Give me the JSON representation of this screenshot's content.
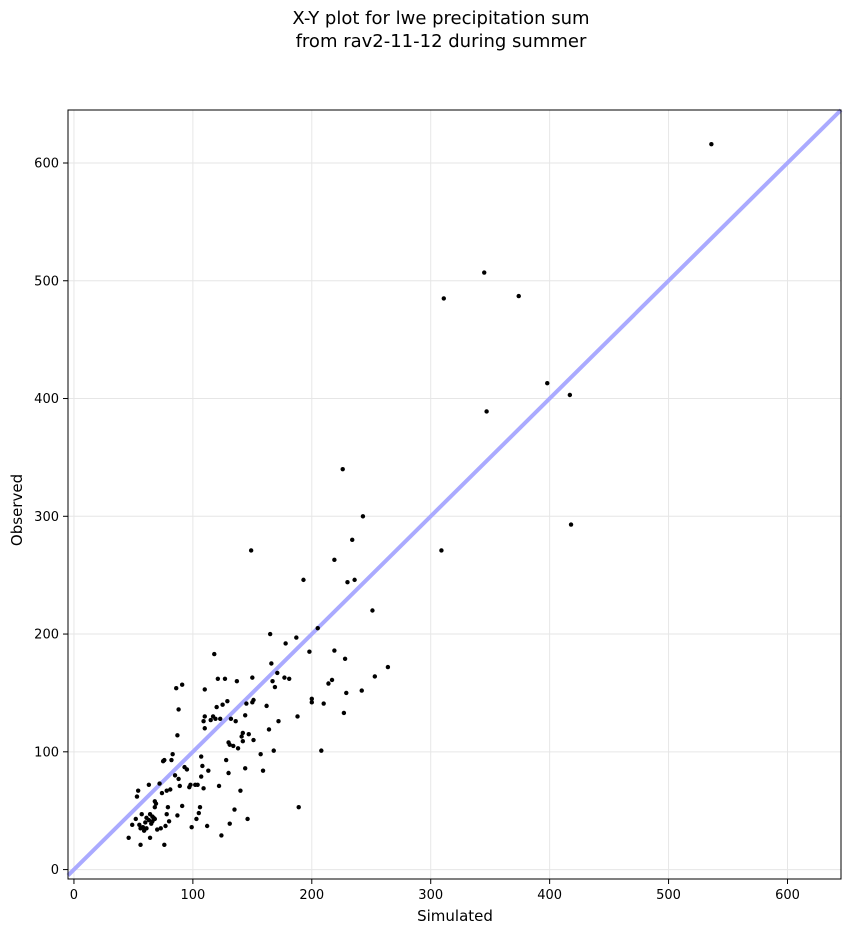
{
  "chart_data": {
    "type": "scatter",
    "title_lines": [
      "X-Y plot for lwe precipitation sum",
      "from rav2-11-12 during summer"
    ],
    "xlabel": "Simulated",
    "ylabel": "Observed",
    "xlim": [
      -5,
      645
    ],
    "ylim": [
      -8,
      645
    ],
    "xticks": [
      0,
      100,
      200,
      300,
      400,
      500,
      600
    ],
    "yticks": [
      0,
      100,
      200,
      300,
      400,
      500,
      600
    ],
    "grid": true,
    "reference_line": {
      "type": "y=x",
      "color": "#aaaaff"
    },
    "point_color": "#000000",
    "points": [
      [
        46,
        27
      ],
      [
        49,
        38
      ],
      [
        52,
        43
      ],
      [
        53,
        62
      ],
      [
        54,
        67
      ],
      [
        55,
        38
      ],
      [
        56,
        35
      ],
      [
        56,
        21
      ],
      [
        57,
        47
      ],
      [
        58,
        36
      ],
      [
        59,
        33
      ],
      [
        60,
        40
      ],
      [
        61,
        44
      ],
      [
        61,
        35
      ],
      [
        63,
        72
      ],
      [
        63,
        42
      ],
      [
        64,
        47
      ],
      [
        64,
        27
      ],
      [
        65,
        39
      ],
      [
        66,
        45
      ],
      [
        66,
        41
      ],
      [
        67,
        44
      ],
      [
        68,
        43
      ],
      [
        68,
        53
      ],
      [
        68,
        58
      ],
      [
        69,
        56
      ],
      [
        70,
        34
      ],
      [
        72,
        73
      ],
      [
        73,
        35
      ],
      [
        74,
        65
      ],
      [
        75,
        92
      ],
      [
        76,
        21
      ],
      [
        76,
        93
      ],
      [
        77,
        37
      ],
      [
        78,
        47
      ],
      [
        78,
        67
      ],
      [
        79,
        53
      ],
      [
        80,
        41
      ],
      [
        81,
        68
      ],
      [
        82,
        93
      ],
      [
        83,
        98
      ],
      [
        85,
        80
      ],
      [
        86,
        154
      ],
      [
        87,
        46
      ],
      [
        87,
        114
      ],
      [
        88,
        136
      ],
      [
        88,
        77
      ],
      [
        89,
        71
      ],
      [
        91,
        157
      ],
      [
        91,
        54
      ],
      [
        93,
        87
      ],
      [
        95,
        85
      ],
      [
        97,
        70
      ],
      [
        98,
        72
      ],
      [
        99,
        36
      ],
      [
        102,
        72
      ],
      [
        103,
        43
      ],
      [
        104,
        72
      ],
      [
        105,
        48
      ],
      [
        106,
        53
      ],
      [
        107,
        96
      ],
      [
        107,
        79
      ],
      [
        108,
        88
      ],
      [
        109,
        69
      ],
      [
        109,
        126
      ],
      [
        110,
        120
      ],
      [
        110,
        130
      ],
      [
        110,
        153
      ],
      [
        112,
        37
      ],
      [
        113,
        84
      ],
      [
        115,
        127
      ],
      [
        117,
        130
      ],
      [
        118,
        183
      ],
      [
        119,
        128
      ],
      [
        120,
        138
      ],
      [
        121,
        162
      ],
      [
        122,
        71
      ],
      [
        123,
        128
      ],
      [
        124,
        29
      ],
      [
        125,
        140
      ],
      [
        127,
        162
      ],
      [
        128,
        93
      ],
      [
        129,
        143
      ],
      [
        130,
        82
      ],
      [
        130,
        108
      ],
      [
        131,
        106
      ],
      [
        131,
        39
      ],
      [
        132,
        128
      ],
      [
        134,
        105
      ],
      [
        135,
        51
      ],
      [
        136,
        126
      ],
      [
        137,
        160
      ],
      [
        138,
        103
      ],
      [
        140,
        67
      ],
      [
        141,
        113
      ],
      [
        142,
        109
      ],
      [
        142,
        116
      ],
      [
        144,
        86
      ],
      [
        144,
        131
      ],
      [
        145,
        141
      ],
      [
        146,
        43
      ],
      [
        147,
        115
      ],
      [
        149,
        271
      ],
      [
        150,
        163
      ],
      [
        150,
        142
      ],
      [
        151,
        144
      ],
      [
        151,
        110
      ],
      [
        157,
        98
      ],
      [
        159,
        84
      ],
      [
        162,
        139
      ],
      [
        164,
        119
      ],
      [
        165,
        200
      ],
      [
        166,
        175
      ],
      [
        167,
        160
      ],
      [
        168,
        101
      ],
      [
        169,
        155
      ],
      [
        171,
        167
      ],
      [
        172,
        126
      ],
      [
        177,
        163
      ],
      [
        178,
        192
      ],
      [
        181,
        162
      ],
      [
        187,
        197
      ],
      [
        188,
        130
      ],
      [
        189,
        53
      ],
      [
        193,
        246
      ],
      [
        198,
        185
      ],
      [
        200,
        145
      ],
      [
        200,
        142
      ],
      [
        205,
        205
      ],
      [
        208,
        101
      ],
      [
        210,
        141
      ],
      [
        214,
        158
      ],
      [
        217,
        161
      ],
      [
        219,
        186
      ],
      [
        219,
        263
      ],
      [
        226,
        340
      ],
      [
        227,
        133
      ],
      [
        228,
        179
      ],
      [
        229,
        150
      ],
      [
        230,
        244
      ],
      [
        234,
        280
      ],
      [
        236,
        246
      ],
      [
        242,
        152
      ],
      [
        243,
        300
      ],
      [
        251,
        220
      ],
      [
        253,
        164
      ],
      [
        264,
        172
      ],
      [
        309,
        271
      ],
      [
        311,
        485
      ],
      [
        345,
        507
      ],
      [
        347,
        389
      ],
      [
        374,
        487
      ],
      [
        398,
        413
      ],
      [
        417,
        403
      ],
      [
        418,
        293
      ],
      [
        536,
        616
      ]
    ]
  }
}
